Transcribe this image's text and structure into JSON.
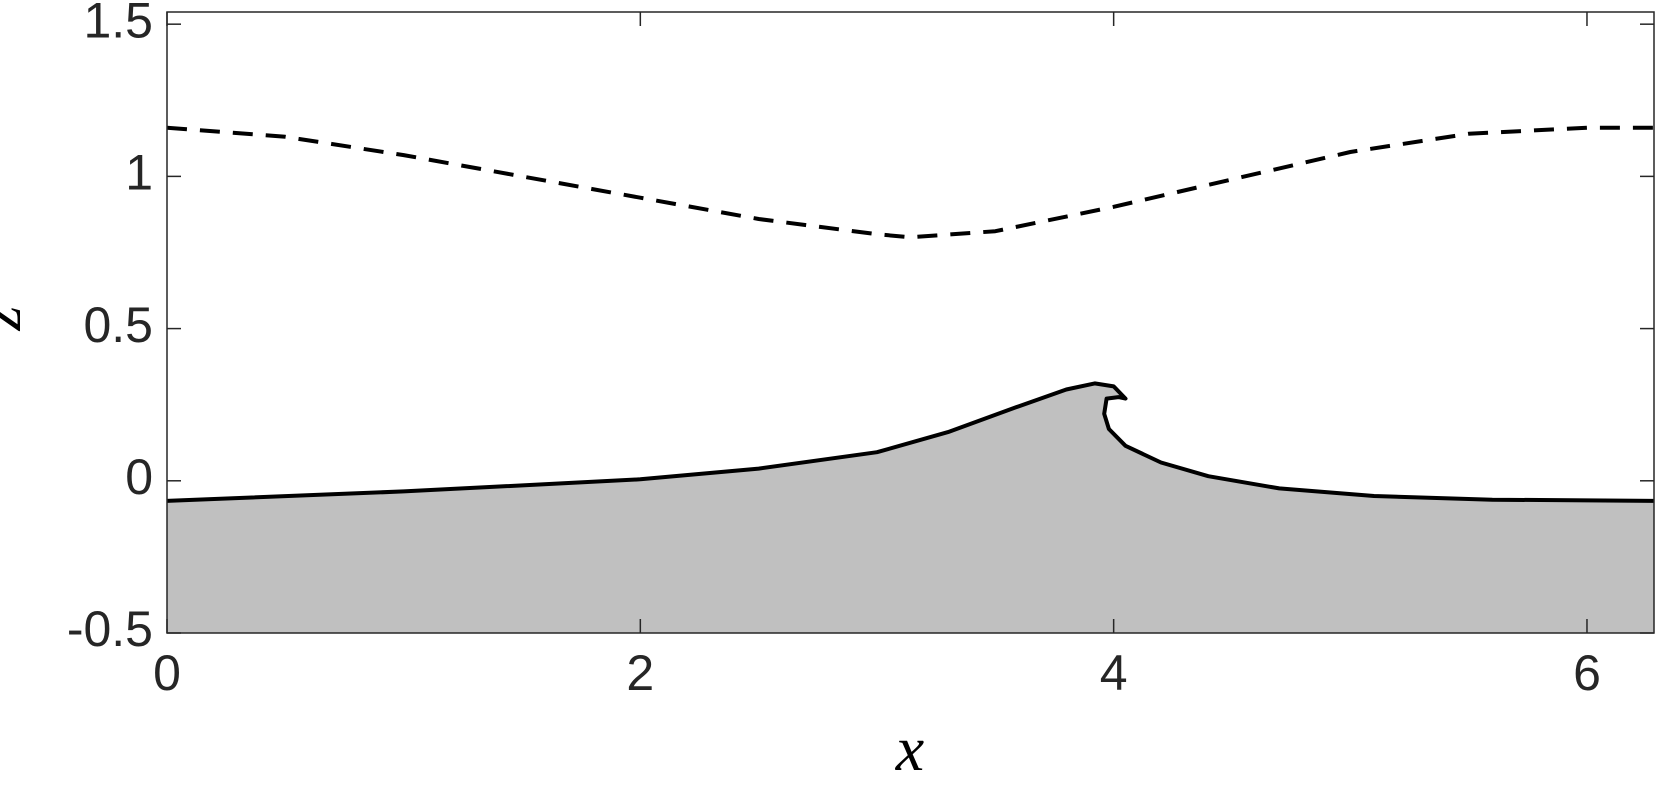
{
  "chart_data": {
    "type": "line",
    "xlabel": "x",
    "ylabel": "z",
    "xlim": [
      0,
      6.2832
    ],
    "ylim": [
      -0.5,
      1.54
    ],
    "xticks": [
      0,
      2,
      4,
      6
    ],
    "yticks": [
      -0.5,
      0,
      0.5,
      1,
      1.5
    ],
    "grid": false,
    "series": [
      {
        "color": "#000000",
        "fill": "#c0c0c0",
        "dash": false,
        "x": [
          0,
          1,
          2,
          2.5,
          3,
          3.3,
          3.6,
          3.8,
          3.92,
          4.0,
          4.05,
          4.02,
          3.97,
          3.96,
          3.98,
          4.05,
          4.2,
          4.4,
          4.7,
          5.1,
          5.6,
          6.2832
        ],
        "values": [
          -0.066,
          -0.035,
          0.005,
          0.04,
          0.094,
          0.16,
          0.245,
          0.3,
          0.32,
          0.31,
          0.27,
          0.275,
          0.27,
          0.22,
          0.17,
          0.115,
          0.06,
          0.015,
          -0.025,
          -0.05,
          -0.062,
          -0.066
        ]
      },
      {
        "color": "#000000",
        "dash": true,
        "x": [
          0,
          0.5,
          1,
          1.5,
          2,
          2.5,
          3,
          3.14,
          3.5,
          4,
          4.5,
          5,
          5.5,
          6,
          6.2832
        ],
        "values": [
          1.16,
          1.13,
          1.07,
          1.0,
          0.93,
          0.86,
          0.81,
          0.8,
          0.82,
          0.9,
          0.99,
          1.08,
          1.14,
          1.16,
          1.16
        ]
      }
    ]
  }
}
